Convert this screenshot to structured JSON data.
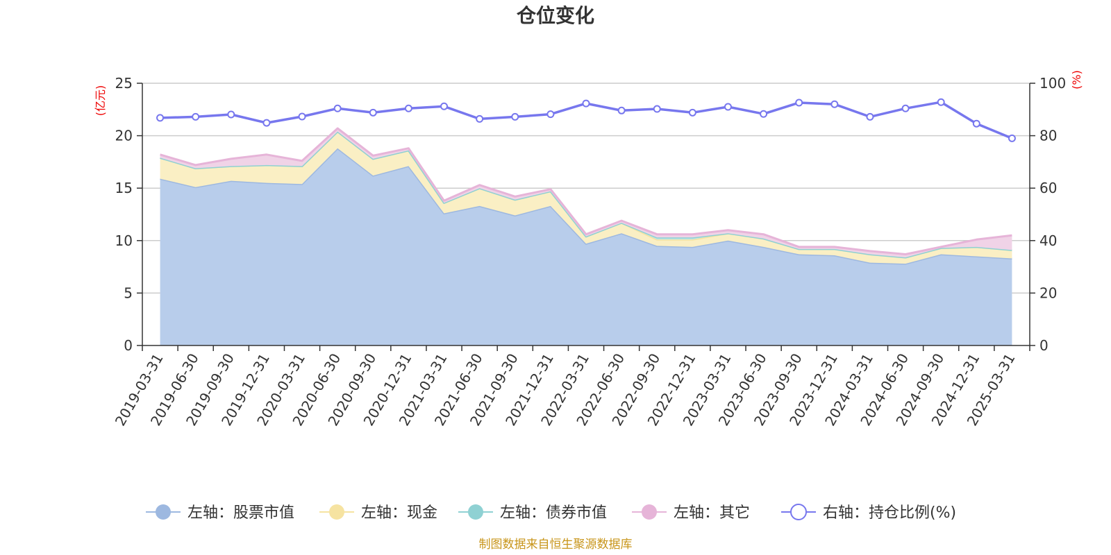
{
  "chart_data": {
    "type": "area",
    "title": "仓位变化",
    "left_unit": "(亿元)",
    "right_unit": "(%)",
    "x": [
      "2019-03-31",
      "2019-06-30",
      "2019-09-30",
      "2019-12-31",
      "2020-03-31",
      "2020-06-30",
      "2020-09-30",
      "2020-12-31",
      "2021-03-31",
      "2021-06-30",
      "2021-09-30",
      "2021-12-31",
      "2022-03-31",
      "2022-06-30",
      "2022-09-30",
      "2022-12-31",
      "2023-03-31",
      "2023-06-30",
      "2023-09-30",
      "2023-12-31",
      "2024-03-31",
      "2024-06-30",
      "2024-09-30",
      "2024-12-31",
      "2025-03-31"
    ],
    "y_left": {
      "min": 0,
      "max": 25,
      "ticks": [
        "0",
        "5",
        "10",
        "15",
        "20",
        "25"
      ]
    },
    "y_right": {
      "min": 0,
      "max": 100,
      "ticks": [
        "0",
        "20",
        "40",
        "60",
        "80",
        "100"
      ]
    },
    "grid": true,
    "stacked": true,
    "series": [
      {
        "name": "左轴：股票市值",
        "axis": "left",
        "color": "#9db8e0",
        "fill": "#b8cdeb",
        "values": [
          15.9,
          15.1,
          15.7,
          15.5,
          15.4,
          18.8,
          16.2,
          17.1,
          12.6,
          13.3,
          12.4,
          13.3,
          9.7,
          10.7,
          9.5,
          9.4,
          10.0,
          9.4,
          8.7,
          8.6,
          7.9,
          7.8,
          8.7,
          8.5,
          8.3
        ]
      },
      {
        "name": "左轴：现金",
        "axis": "left",
        "color": "#f6e3a1",
        "fill": "#faefc4",
        "values": [
          2.0,
          1.8,
          1.4,
          1.7,
          1.7,
          1.6,
          1.6,
          1.5,
          1.0,
          1.7,
          1.5,
          1.4,
          0.7,
          1.0,
          0.6,
          0.7,
          0.7,
          0.8,
          0.5,
          0.6,
          0.8,
          0.6,
          0.6,
          0.9,
          0.8
        ]
      },
      {
        "name": "左轴：债券市值",
        "axis": "left",
        "color": "#8fd1d3",
        "fill": "#bfe5e6",
        "values": [
          0,
          0,
          0,
          0,
          0,
          0,
          0,
          0,
          0,
          0,
          0,
          0,
          0,
          0,
          0.2,
          0.2,
          0,
          0,
          0,
          0,
          0,
          0,
          0,
          0,
          0
        ]
      },
      {
        "name": "左轴：其它",
        "axis": "left",
        "color": "#e6b4d8",
        "fill": "#f0d3e7",
        "values": [
          0.3,
          0.3,
          0.7,
          1.0,
          0.5,
          0.3,
          0.3,
          0.2,
          0.2,
          0.3,
          0.3,
          0.2,
          0.2,
          0.2,
          0.3,
          0.3,
          0.3,
          0.4,
          0.2,
          0.2,
          0.3,
          0.3,
          0.1,
          0.7,
          1.4
        ]
      },
      {
        "name": "右轴：持仓比例(%)",
        "axis": "right",
        "color": "#7777ee",
        "values": [
          86.8,
          87.2,
          88.1,
          84.9,
          87.3,
          90.4,
          88.8,
          90.4,
          91.2,
          86.4,
          87.2,
          88.2,
          92.3,
          89.6,
          90.2,
          88.8,
          91.0,
          88.3,
          92.6,
          92.0,
          87.2,
          90.4,
          92.8,
          84.6,
          79.0
        ]
      }
    ],
    "source_note": "制图数据来自恒生聚源数据库"
  }
}
